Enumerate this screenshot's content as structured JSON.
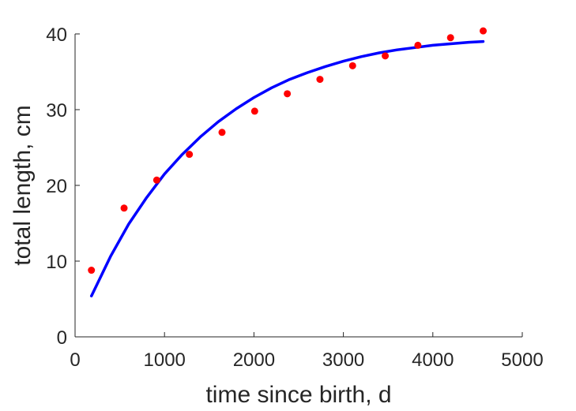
{
  "chart_data": {
    "type": "scatter",
    "title": "",
    "xlabel": "time since birth, d",
    "ylabel": "total length, cm",
    "xlim": [
      0,
      5000
    ],
    "ylim": [
      0,
      40
    ],
    "x_ticks": [
      0,
      1000,
      2000,
      3000,
      4000,
      5000
    ],
    "y_ticks": [
      0,
      10,
      20,
      30,
      40
    ],
    "x_tick_labels": [
      "0",
      "1000",
      "2000",
      "3000",
      "4000",
      "5000"
    ],
    "y_tick_labels": [
      "0",
      "10",
      "20",
      "30",
      "40"
    ],
    "grid": false,
    "legend": "none",
    "series": [
      {
        "kind": "points",
        "color": "#ff0000",
        "x": [
          183,
          548,
          913,
          1278,
          1643,
          2008,
          2373,
          2738,
          3103,
          3468,
          3833,
          4198,
          4563
        ],
        "y": [
          8.8,
          17.0,
          20.7,
          24.1,
          27.0,
          29.8,
          32.1,
          34.0,
          35.8,
          37.1,
          38.5,
          39.5,
          40.4
        ]
      },
      {
        "kind": "line",
        "color": "#0000ff",
        "x": [
          183,
          400,
          600,
          800,
          1000,
          1200,
          1400,
          1600,
          1800,
          2000,
          2200,
          2400,
          2600,
          2800,
          3000,
          3200,
          3400,
          3600,
          3800,
          4000,
          4200,
          4400,
          4563
        ],
        "y": [
          5.4,
          10.7,
          14.9,
          18.4,
          21.5,
          24.1,
          26.4,
          28.4,
          30.1,
          31.6,
          32.9,
          34.0,
          34.9,
          35.7,
          36.4,
          37.0,
          37.5,
          37.9,
          38.2,
          38.5,
          38.7,
          38.9,
          39.0
        ]
      }
    ]
  }
}
